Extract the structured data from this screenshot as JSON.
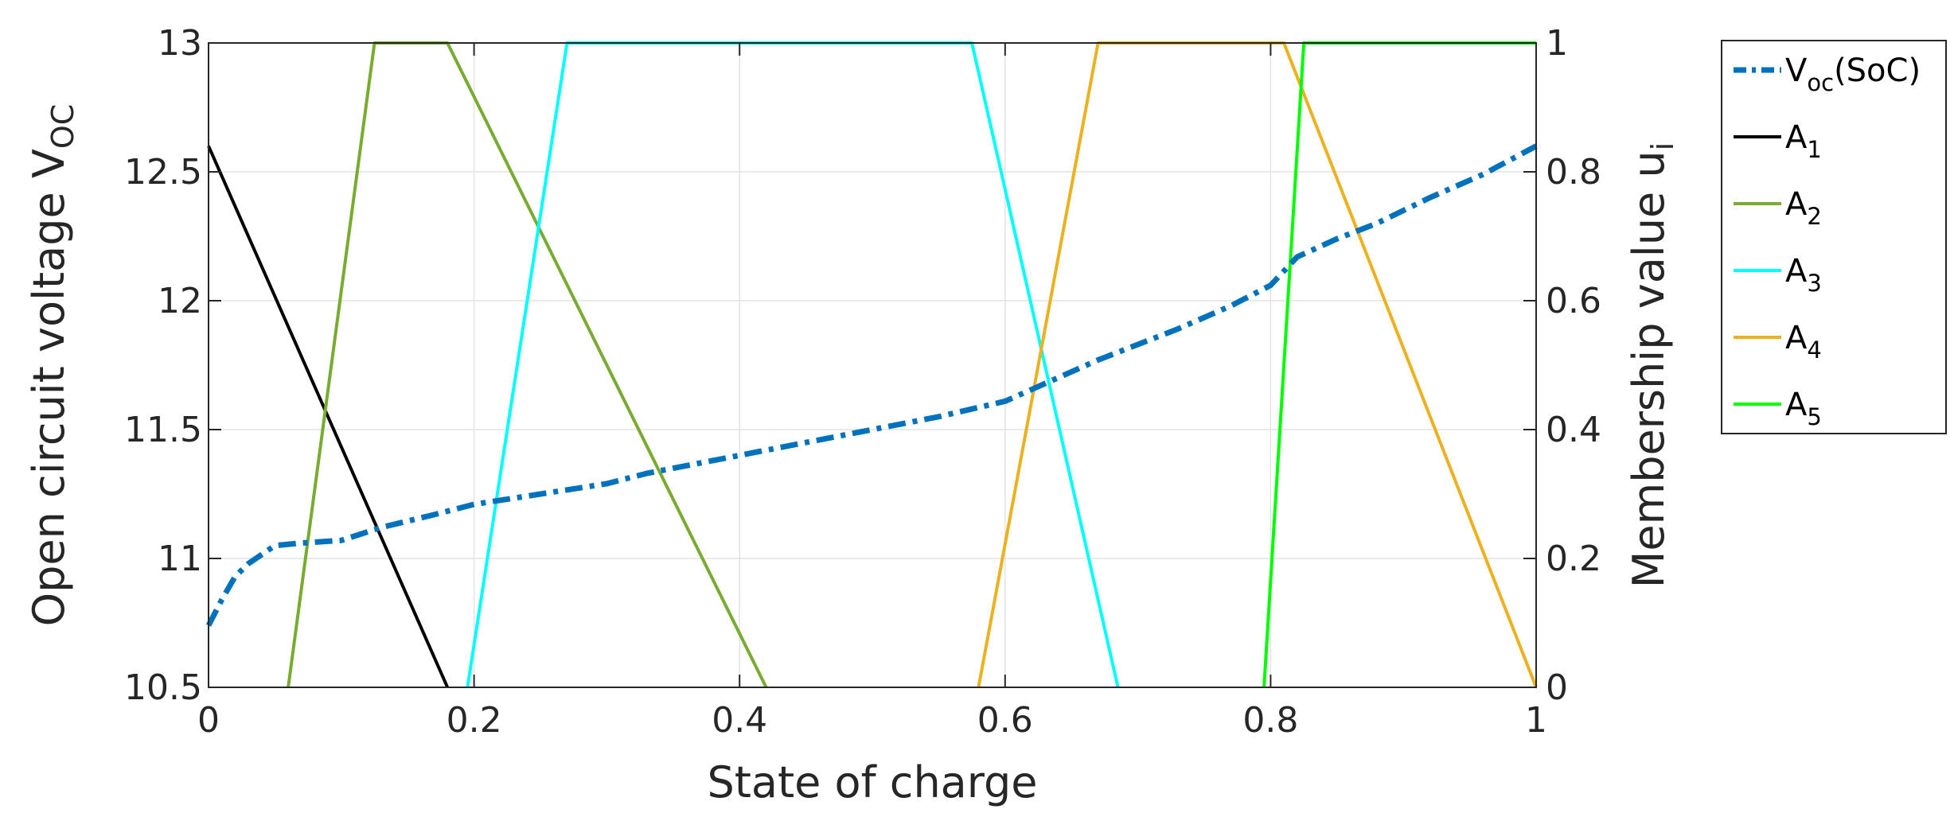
{
  "chart_data": {
    "type": "line",
    "xlabel": "State of charge",
    "ylabel_left": {
      "main": "Open circuit voltage V",
      "sub": "OC"
    },
    "ylabel_right": {
      "main": "Membership value u",
      "sub": "i"
    },
    "xlim": [
      0,
      1
    ],
    "ylim_left": [
      10.5,
      13
    ],
    "ylim_right": [
      0,
      1
    ],
    "x_ticks": [
      "0",
      "0.2",
      "0.4",
      "0.6",
      "0.8",
      "1"
    ],
    "y_left_ticks": [
      "10.5",
      "11",
      "11.5",
      "12",
      "12.5",
      "13"
    ],
    "y_right_ticks": [
      "0",
      "0.2",
      "0.4",
      "0.6",
      "0.8",
      "1"
    ],
    "grid": true,
    "legend_position": "outside-right-top",
    "series": [
      {
        "name": "V",
        "name_sub": "oc",
        "name_suffix": "(SoC)",
        "axis": "left",
        "style": "dash-dot",
        "color": "#0072BD",
        "x": [
          0,
          0.01,
          0.02,
          0.03,
          0.05,
          0.07,
          0.1,
          0.13,
          0.17,
          0.2,
          0.25,
          0.3,
          0.33,
          0.4,
          0.45,
          0.5,
          0.55,
          0.6,
          0.67,
          0.73,
          0.77,
          0.8,
          0.82,
          0.85,
          0.88,
          0.92,
          0.96,
          1.0
        ],
        "y": [
          10.74,
          10.84,
          10.93,
          10.98,
          11.05,
          11.06,
          11.07,
          11.12,
          11.17,
          11.21,
          11.25,
          11.29,
          11.33,
          11.4,
          11.45,
          11.5,
          11.55,
          11.61,
          11.77,
          11.89,
          11.98,
          12.06,
          12.17,
          12.24,
          12.3,
          12.4,
          12.49,
          12.6
        ]
      },
      {
        "name": "A",
        "name_sub": "1",
        "name_suffix": "",
        "axis": "right",
        "style": "solid",
        "color": "#000000",
        "x": [
          0,
          0.18
        ],
        "y": [
          0.84,
          0
        ]
      },
      {
        "name": "A",
        "name_sub": "2",
        "name_suffix": "",
        "axis": "right",
        "style": "solid",
        "color": "#77AC30",
        "x": [
          0.06,
          0.125,
          0.18,
          0.42
        ],
        "y": [
          0,
          1,
          1,
          0
        ]
      },
      {
        "name": "A",
        "name_sub": "3",
        "name_suffix": "",
        "axis": "right",
        "style": "solid",
        "color": "#00FFFF",
        "x": [
          0.195,
          0.27,
          0.575,
          0.685
        ],
        "y": [
          0,
          1,
          1,
          0
        ]
      },
      {
        "name": "A",
        "name_sub": "4",
        "name_suffix": "",
        "axis": "right",
        "style": "solid",
        "color": "#EDB120",
        "x": [
          0.58,
          0.67,
          0.81,
          1.0
        ],
        "y": [
          0,
          1,
          1,
          0
        ]
      },
      {
        "name": "A",
        "name_sub": "5",
        "name_suffix": "",
        "axis": "right",
        "style": "solid",
        "color": "#00FF00",
        "x": [
          0.795,
          0.825,
          1.0
        ],
        "y": [
          0,
          1,
          1
        ]
      }
    ]
  }
}
